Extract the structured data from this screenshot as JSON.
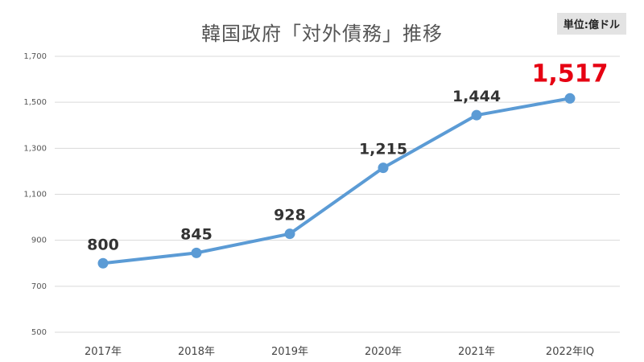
{
  "chart_data": {
    "type": "line",
    "title": "韓国政府「対外債務」推移",
    "unit_note": "単位:億ドル",
    "categories": [
      "2017年",
      "2018年",
      "2019年",
      "2020年",
      "2021年",
      "2022年IQ"
    ],
    "series": [
      {
        "values": [
          800,
          845,
          928,
          1215,
          1444,
          1517
        ],
        "data_labels": [
          "800",
          "845",
          "928",
          "1,215",
          "1,444",
          "1,517"
        ]
      }
    ],
    "highlight_index": 5,
    "ylim": [
      500,
      1700
    ],
    "yticks": [
      500,
      700,
      900,
      1100,
      1300,
      1500,
      1700
    ],
    "ytick_labels": [
      "500",
      "700",
      "900",
      "1,100",
      "1,300",
      "1,500",
      "1,700"
    ],
    "grid": true,
    "line_color": "#5b9bd5",
    "marker_color": "#5b9bd5",
    "highlight_color": "#e60012",
    "grid_color": "#d9d9d9"
  }
}
